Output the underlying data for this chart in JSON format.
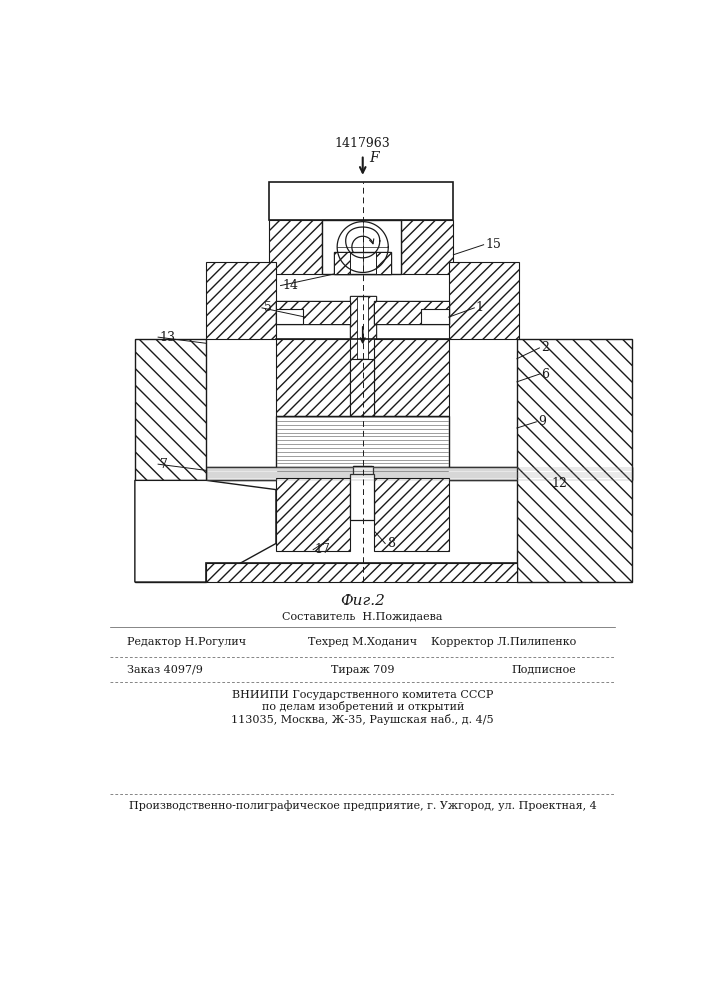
{
  "patent_number": "1417963",
  "figure_label": "Фиг.2",
  "force_label": "F",
  "bg_color": "#ffffff",
  "line_color": "#1a1a1a",
  "footer_text": {
    "sostavitel": "Составитель  Н.Пожидаева",
    "redaktor": "Редактор Н.Рогулич",
    "tehred": "Техред М.Ходанич",
    "korrektor": "Корректор Л.Пилипенко",
    "zakaz": "Заказ 4097/9",
    "tirazh": "Тираж 709",
    "podpisnoe": "Подписное",
    "vniipи1": "ВНИИПИ Государственного комитета СССР",
    "vniipи2": "по делам изобретений и открытий",
    "vniipи3": "113035, Москва, Ж-35, Раушская наб., д. 4/5",
    "production": "Производственно-полиграфическое предприятие, г. Ужгород, ул. Проектная, 4"
  }
}
